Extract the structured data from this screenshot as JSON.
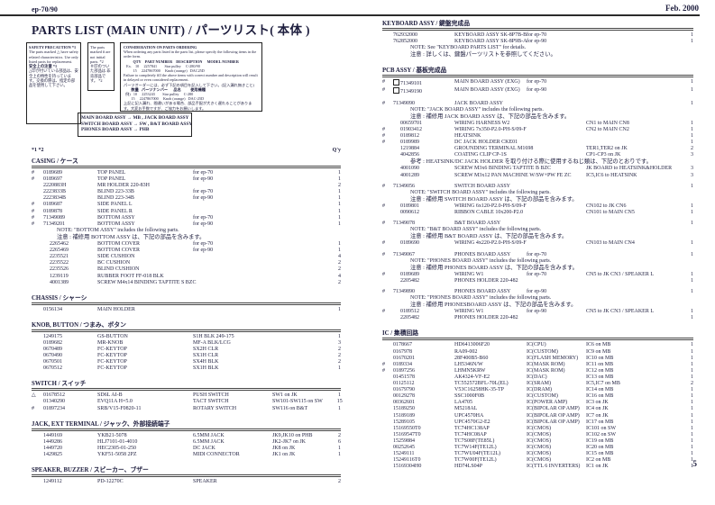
{
  "page": {
    "model": "ep-70/90",
    "date": "Feb. 2000",
    "title": "PARTS LIST (MAIN UNIT) / パーツリスト( 本体 )",
    "footnote_refs": "*1  *2",
    "qty_header": "Q'y",
    "page_number": "5"
  },
  "safety_box": {
    "title_en": "SAFETY PRECAUTION *1",
    "body_en": "The parts marked △ have safety related characteristics. Use only listed parts for replacement.",
    "title_ja": "安全上の注意 *1",
    "body_ja": "△印が付いている部品は、安全上の特性を持っています。交換の際は、指定の部品を使用して下さい。"
  },
  "hash_box": {
    "body_en": "The parts marked # are not initial parts. *2",
    "body_ja": "＃印のついた部品は 非売部品です。 *2"
  },
  "ordering_box": {
    "title": "CONSIDERATION ON PARTS ORDERING",
    "intro": "When ordering any parts listed in the parts list, please specify the following items in the order form.",
    "cols": "          QTY    PART NUMBER    DESCRIPTION     MODEL NUMBER",
    "ex1": "   Ex.    10     2257841        Star pulley     C-280/90",
    "ex2": "          15     2247867000     Knob (orange)   DAC25D",
    "warn": "Failure to completely fill the above items with correct number and description will result in delayed or even considered replacement.",
    "intro_ja": "パーツオーダーには、必ず下記の項目を記入して下さい。(記入漏れ無きこと)",
    "cols_ja": "        数量   パーツナンバー      品名          使用機種",
    "ex1_ja": "  例)   10     2253243        Star pulley     C-280",
    "ex2_ja": "        15     2247867000     Knob (orange)   DAC-25D",
    "warn_ja": "上記に記入漏れ、間違いがある場合、部品手配が大きく遅れることがあります。大変お手数ですが、ご協力をお願いします。"
  },
  "abbrev_box": {
    "lines": [
      "MAIN BOARD ASSY → MB , JACK BOARD ASSY → JK",
      "SWITCH BOARD ASSY → SW , B&T BOARD ASSY → B&T",
      "PHONES BOARD ASSY → PHB"
    ]
  },
  "left_sections": [
    {
      "title": "CASING / ケース",
      "lines": [
        {
          "t": "r",
          "m": "#",
          "pn": "0189689",
          "c2": "TOP PANEL",
          "c3": "for ep-70",
          "qty": "1"
        },
        {
          "t": "r",
          "m": "#",
          "pn": "0189697",
          "c2": "TOP PANEL",
          "c3": "for ep-90",
          "qty": "1"
        },
        {
          "t": "r",
          "pn": "2220883H",
          "c2": "MR HOLDER 220-83H",
          "qty": "2"
        },
        {
          "t": "r",
          "pn": "2223833B",
          "c2": "BLIND 223-33B",
          "c3": "for ep-70",
          "qty": "1"
        },
        {
          "t": "r",
          "pn": "2223834B",
          "c2": "BLIND 223-34B",
          "c3": "for ep-90",
          "qty": "1"
        },
        {
          "t": "r",
          "m": "#",
          "pn": "0189687",
          "c2": "SIDE PANEL L",
          "qty": "1"
        },
        {
          "t": "r",
          "m": "#",
          "pn": "0189878",
          "c2": "SIDE PANEL R",
          "qty": "1"
        },
        {
          "t": "r",
          "m": "#",
          "pn": "71349089",
          "c2": "BOTTOM ASSY",
          "c3": "for ep-70",
          "qty": "1"
        },
        {
          "t": "r",
          "m": "#",
          "pn": "71349201",
          "c2": "BOTTOM ASSY",
          "c3": "for ep-90",
          "qty": "1"
        },
        {
          "t": "n",
          "text": "NOTE: \"BOTTOM ASSY\" includes the following parts."
        },
        {
          "t": "nj",
          "text": "注意 : 補修用 BOTTOM ASSY は、下記の部品を含みます。"
        },
        {
          "t": "r",
          "sub": true,
          "pn": "2265462",
          "c2": "BOTTOM COVER",
          "c3": "for ep-70",
          "qty": "1"
        },
        {
          "t": "r",
          "sub": true,
          "pn": "2265469",
          "c2": "BOTTOM COVER",
          "c3": "for ep-90",
          "qty": "1"
        },
        {
          "t": "r",
          "sub": true,
          "pn": "2235521",
          "c2": "SIDE CUSHION",
          "qty": "4"
        },
        {
          "t": "r",
          "sub": true,
          "pn": "2235522",
          "c2": "BC CUSHION",
          "qty": "2"
        },
        {
          "t": "r",
          "sub": true,
          "pn": "2235526",
          "c2": "BLIND CUSHION",
          "qty": "2"
        },
        {
          "t": "r",
          "sub": true,
          "pn": "1239119",
          "c2": "RUBBER FOOT FF-018 BLK",
          "qty": "4"
        },
        {
          "t": "r",
          "sub": true,
          "pn": "4001389",
          "c2": "SCREW M4x14 BINDING TAPTITE S BZC",
          "qty": "2"
        }
      ]
    },
    {
      "title": "CHASSIS / シャーシ",
      "lines": [
        {
          "t": "r",
          "pn": "0156134",
          "c2": "MAIN HOLDER",
          "qty": "1"
        }
      ]
    },
    {
      "title": "KNOB, BUTTON / つまみ、ボタン",
      "lines": [
        {
          "t": "r",
          "pn": "1249175",
          "c2": "GS-BUTTON",
          "c3": "S1H BLK 249-175",
          "qty": "1"
        },
        {
          "t": "r",
          "pn": "0189682",
          "c2": "MR-KNOB",
          "c3": "MF-A BLK/LCG",
          "qty": "3"
        },
        {
          "t": "r",
          "pn": "0670489",
          "c2": "FC-KEYTOP",
          "c3": "SX2H CLR",
          "qty": "2"
        },
        {
          "t": "r",
          "pn": "0670490",
          "c2": "FC-KEYTOP",
          "c3": "SX1H CLR",
          "qty": "2"
        },
        {
          "t": "r",
          "pn": "0670501",
          "c2": "FC-KEYTOP",
          "c3": "SX4H BLK",
          "qty": "2"
        },
        {
          "t": "r",
          "pn": "0670512",
          "c2": "FC-KEYTOP",
          "c3": "SX1H BLK",
          "qty": "1"
        }
      ]
    },
    {
      "title": "SWITCH / スイッチ",
      "lines": [
        {
          "t": "r",
          "m": "△",
          "pn": "01678512",
          "c2": "SD6L AI-B",
          "c3": "PUSH SWITCH",
          "c4": "SW1 on JK",
          "qty": "1"
        },
        {
          "t": "r",
          "pn": "01340290",
          "c2": "EVQ11A H=5.0",
          "c3": "TACT SWITCH",
          "c4": "SW101-SW115 on SW",
          "qty": "15"
        },
        {
          "t": "r",
          "m": "#",
          "pn": "01897234",
          "c2": "SRB/V15-F0820-11",
          "c3": "ROTARY SWITCH",
          "c4": "SW116 on B&T",
          "qty": "1"
        }
      ]
    },
    {
      "title": "JACK, EXT TERMINAL / ジャック、外部接続端子",
      "lines": [
        {
          "t": "r",
          "pn": "1449169",
          "c2": "YKB21-5078",
          "c3": "6.5MM JACK",
          "c4": "JK9,JK10 on PHB",
          "qty": "2"
        },
        {
          "t": "r",
          "pn": "1449286",
          "c2": "HLJ7101-01-4010",
          "c3": "6.5MM JACK",
          "c4": "JK2-JK7 on JK",
          "qty": "6"
        },
        {
          "t": "r",
          "pn": "1449720",
          "c2": "HEC2305-01-250",
          "c3": "DC JACK",
          "c4": "JK8 on JK",
          "qty": "1"
        },
        {
          "t": "r",
          "pn": "1429825",
          "c2": "YKF51-5058 2PZ",
          "c3": "MIDI CONNECTOR",
          "c4": "JK1 on JK",
          "qty": "1"
        }
      ]
    },
    {
      "title": "SPEAKER, BUZZER / スピーカー、ブザー",
      "lines": [
        {
          "t": "r",
          "pn": "1249112",
          "c2": "PD-12270C",
          "c3": "SPEAKER",
          "qty": "2"
        }
      ]
    }
  ],
  "right_sections": [
    {
      "title": "KEYBOARD ASSY / 鍵盤完成品",
      "lines": [
        {
          "t": "r",
          "pn": "762932000",
          "c2": "KEYBOARD ASSY SK-8P7B-B",
          "c3": "for ep-70",
          "qty": "1"
        },
        {
          "t": "r",
          "pn": "762852000",
          "c2": "KEYBOARD ASSY SK-8P9B-A",
          "c3": "for ep-90",
          "qty": "1"
        },
        {
          "t": "n",
          "text": "NOTE: See \"KEYBOARD PARTS LIST\" for details."
        },
        {
          "t": "nj",
          "text": "注意 : 詳しくは、鍵盤パーツリストを参照してください。"
        }
      ]
    },
    {
      "title": "PCB ASSY / 基板完成品",
      "lines": [
        {
          "t": "r",
          "m": "#",
          "box": true,
          "pn": "71349101",
          "c2": "MAIN BOARD ASSY (EXG)",
          "c3": "for ep-70",
          "qty": "1"
        },
        {
          "t": "r",
          "m": "#",
          "box": true,
          "pn": "71349190",
          "c2": "MAIN BOARD ASSY (EXG)",
          "c3": "for ep-90",
          "qty": "1"
        },
        {
          "t": "g"
        },
        {
          "t": "r",
          "m": "#",
          "pn": "71349090",
          "c2": "JACK BOARD ASSY",
          "qty": "1"
        },
        {
          "t": "n",
          "text": "NOTE: \"JACK BOARD ASSY\" includes the following parts."
        },
        {
          "t": "nj",
          "text": "注意 : 補修用 JACK BOARD ASSY  は、下記の部品を含みます。"
        },
        {
          "t": "r",
          "sub": true,
          "pn": "00659701",
          "c2": "WIRING HARNESS W2",
          "c4": "CN1 to MAIN CN8",
          "qty": "1"
        },
        {
          "t": "r",
          "sub": true,
          "m": "#",
          "pn": "01903412",
          "c2": "WIRING 7x350-P2.0-PH-S/09-F",
          "c4": "CN2 to MAIN CN2",
          "qty": "1"
        },
        {
          "t": "r",
          "sub": true,
          "m": "#",
          "pn": "0189812",
          "c2": "HEATSINK",
          "qty": "1"
        },
        {
          "t": "r",
          "sub": true,
          "m": "#",
          "pn": "0189989",
          "c2": "DC JACK HOLDER CKE01",
          "qty": "1"
        },
        {
          "t": "r",
          "sub": true,
          "pn": "1219884",
          "c2": "GROUNDING TERMINAL M1698",
          "c4": "TER1,TER2 on JK",
          "qty": "2"
        },
        {
          "t": "r",
          "sub": true,
          "pn": "4042856",
          "c2": "COATING CLIP CP-1S",
          "c4": "CP1-CP3 on JK",
          "qty": "3"
        },
        {
          "t": "nj",
          "text": "参考 : HEATSINK/DC JACK HOLDER を取り付ける際に使用するねじ類は、下記のとおりです。"
        },
        {
          "t": "r",
          "sub": true,
          "pn": "4001090",
          "c2": "SCREW M3x6 BINDING TAPTITE B BZC",
          "c4": "JK BOARD to HEATSINK&HOLDER",
          "qty": "3"
        },
        {
          "t": "r",
          "sub": true,
          "pn": "4001289",
          "c2": "SCREW M3x12 PAN MACHINE W/SW+PW FE ZC",
          "c4": "IC5,IC6 to HEATSINK",
          "qty": "3"
        },
        {
          "t": "g"
        },
        {
          "t": "r",
          "m": "#",
          "pn": "71349056",
          "c2": "SWITCH BOARD ASSY",
          "qty": "1"
        },
        {
          "t": "n",
          "text": "NOTE: \"SWITCH BOARD ASSY\" includes the following parts."
        },
        {
          "t": "nj",
          "text": "注意 : 補修用 SWITCH BOARD ASSY  は、下記の部品を含みます。"
        },
        {
          "t": "r",
          "sub": true,
          "m": "#",
          "pn": "0189801",
          "c2": "WIRING 6x120-P2.0-PH-S/09-F",
          "c4": "CN102 to JK CN6",
          "qty": "1"
        },
        {
          "t": "r",
          "sub": true,
          "pn": "0090612",
          "c2": "RIBBON CABLE 10x200-P2.0",
          "c4": "CN101 to MAIN CN5",
          "qty": "1"
        },
        {
          "t": "g"
        },
        {
          "t": "r",
          "m": "#",
          "pn": "71349078",
          "c2": "B&T BOARD ASSY",
          "qty": "1"
        },
        {
          "t": "n",
          "text": "NOTE: \"B&T BOARD ASSY\" includes the following parts."
        },
        {
          "t": "nj",
          "text": "注意 : 補修用 B&T BOARD ASSY は、下記の部品を含みます。"
        },
        {
          "t": "r",
          "sub": true,
          "m": "#",
          "pn": "0189690",
          "c2": "WIRING 4x220-P2.0-PH-S/09-F",
          "c4": "CN103 to MAIN CN4",
          "qty": "1"
        },
        {
          "t": "g"
        },
        {
          "t": "r",
          "m": "#",
          "pn": "71349067",
          "c2": "PHONES BOARD ASSY",
          "c3": "for ep-70",
          "qty": "1"
        },
        {
          "t": "n",
          "text": "NOTE: \"PHONES BOARD ASSY\" includes the following parts."
        },
        {
          "t": "nj",
          "text": "注意 : 補修用 PHONES BOARD ASSY は、下記の部品を含みます。"
        },
        {
          "t": "r",
          "sub": true,
          "m": "#",
          "pn": "0189689",
          "c2": "WIRING W1",
          "c3": "for ep-70",
          "c4": "CN5 to JK CN3 / SPEAKER L",
          "qty": "1"
        },
        {
          "t": "r",
          "sub": true,
          "pn": "2205482",
          "c2": "PHONES HOLDER 220-482",
          "qty": "1"
        },
        {
          "t": "g"
        },
        {
          "t": "r",
          "m": "#",
          "pn": "71349890",
          "c2": "PHONES BOARD ASSY",
          "c3": "for ep-90",
          "qty": "1"
        },
        {
          "t": "n",
          "text": "NOTE: \"PHONES BOARD ASSY\" includes the following parts."
        },
        {
          "t": "nj",
          "text": "注意 : 補修用 PHONESBOARD ASSY は、下記の部品を含みます。"
        },
        {
          "t": "r",
          "sub": true,
          "m": "#",
          "pn": "0189512",
          "c2": "WIRING W1",
          "c3": "for ep-90",
          "c4": "CN5 to JK CN3 / SPEAKER L",
          "qty": "1"
        },
        {
          "t": "r",
          "sub": true,
          "pn": "2205482",
          "c2": "PHONES HOLDER 220-482",
          "qty": "1"
        }
      ]
    },
    {
      "title": "IC / 集積回路",
      "lines": [
        {
          "t": "r",
          "pn": "0178667",
          "c2": "HD6413006F20",
          "c3": "IC(CPU)",
          "c4": "IC6 on MB",
          "qty": "1"
        },
        {
          "t": "r",
          "pn": "0167978",
          "c2": "RA09-002",
          "c3": "IC(CUSTOM)",
          "c4": "IC9 on MB",
          "qty": "1"
        },
        {
          "t": "r",
          "pn": "01670201",
          "c2": "28F400B5-B60",
          "c3": "IC(FLASH MEMORY)",
          "c4": "IC10 on MB",
          "qty": "1"
        },
        {
          "t": "r",
          "m": "#",
          "pn": "0189334",
          "c2": "LH5346N/W",
          "c3": "IC(MASK ROM)",
          "c4": "IC11 on MB",
          "qty": "1"
        },
        {
          "t": "r",
          "m": "#",
          "pn": "01897256",
          "c2": "LHMN5KRW",
          "c3": "IC(MASK ROM)",
          "c4": "IC12 on MB",
          "qty": "1"
        },
        {
          "t": "r",
          "pn": "01451578",
          "c2": "AK4324-VF-E2",
          "c3": "IC(DAC)",
          "c4": "IC13 on MB",
          "qty": "1"
        },
        {
          "t": "r",
          "pn": "01125112",
          "c2": "TC552572BFL-70L(EL)",
          "c3": "IC(SRAM)",
          "c4": "IC5,IC7 on MB",
          "qty": "2"
        },
        {
          "t": "r",
          "pn": "01679790",
          "c2": "V53C16258HK-35-TP",
          "c3": "IC(DRAM)",
          "c4": "IC14 on MB",
          "qty": "1"
        },
        {
          "t": "r",
          "pn": "00129278",
          "c2": "SSC1000F0B",
          "c3": "IC(CUSTOM)",
          "c4": "IC16 on MB",
          "qty": "1"
        },
        {
          "t": "r",
          "pn": "00362601",
          "c2": "LA4705",
          "c3": "IC(POWER AMP)",
          "c4": "IC3 on JK",
          "qty": "1"
        },
        {
          "t": "r",
          "pn": "15189250",
          "c2": "M5218AL",
          "c3": "IC(BIPOLAR OP AMP)",
          "c4": "IC4 on JK",
          "qty": "1"
        },
        {
          "t": "r",
          "pn": "15189189",
          "c2": "UPC4570HA",
          "c3": "IC(BIPOLAR OP AMP)",
          "c4": "IC7 on JK",
          "qty": "1"
        },
        {
          "t": "r",
          "pn": "15289105",
          "c2": "UPC4570G2-E2",
          "c3": "IC(BIPOLAR OP AMP)",
          "c4": "IC17 on MB",
          "qty": "1"
        },
        {
          "t": "r",
          "pn": "15169550T0",
          "c2": "TC74HC138AP",
          "c3": "IC(CMOS)",
          "c4": "IC101 on SW",
          "qty": "1"
        },
        {
          "t": "r",
          "pn": "15169547T0",
          "c2": "TC74HC08AP",
          "c3": "IC(CMOS)",
          "c4": "IC102 on SW",
          "qty": "1"
        },
        {
          "t": "r",
          "pn": "15259884",
          "c2": "TC7S08F(TE85L)",
          "c3": "IC(CMOS)",
          "c4": "IC19 on MB",
          "qty": "1"
        },
        {
          "t": "r",
          "pn": "00252645",
          "c2": "TC7W14F(TE12L)",
          "c3": "IC(CMOS)",
          "c4": "IC20 on MB",
          "qty": "1"
        },
        {
          "t": "r",
          "pn": "15249111",
          "c2": "TC7WU04F(TE12L)",
          "c3": "IC(CMOS)",
          "c4": "IC15 on MB",
          "qty": "1"
        },
        {
          "t": "r",
          "pn": "15249116T0",
          "c2": "TC7W00F(TE12L)",
          "c3": "IC(CMOS)",
          "c4": "IC2 on MB",
          "qty": "1"
        },
        {
          "t": "r",
          "pn": "15169304H0",
          "c2": "HD74LS04P",
          "c3": "IC(TTL 6 INVERTERS)",
          "c4": "IC1 on JK",
          "qty": "1"
        }
      ]
    }
  ]
}
